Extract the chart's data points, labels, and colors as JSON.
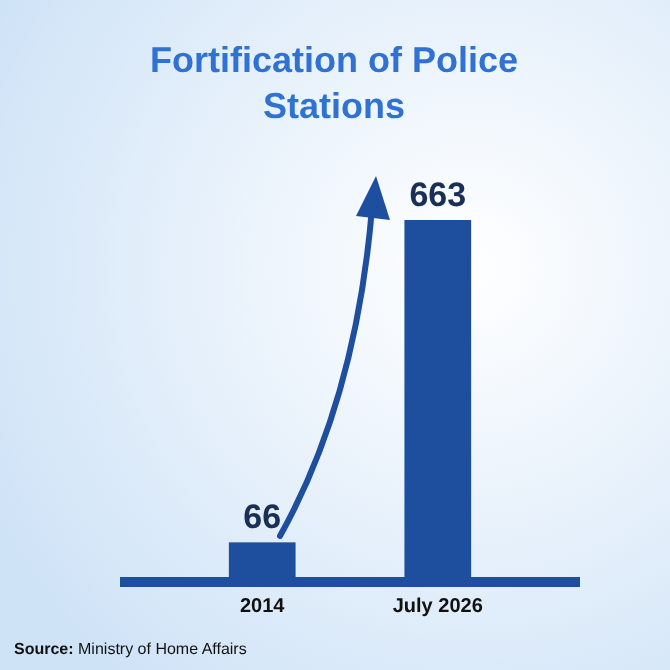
{
  "chart_data": {
    "type": "bar",
    "title": "Fortification of Police Stations",
    "categories": [
      "2014",
      "July 2026"
    ],
    "values": [
      66,
      663
    ],
    "color": "#1d4f9e",
    "data_labels": true,
    "annotations": [
      "Source: Ministry of Home Affairs"
    ]
  }
}
